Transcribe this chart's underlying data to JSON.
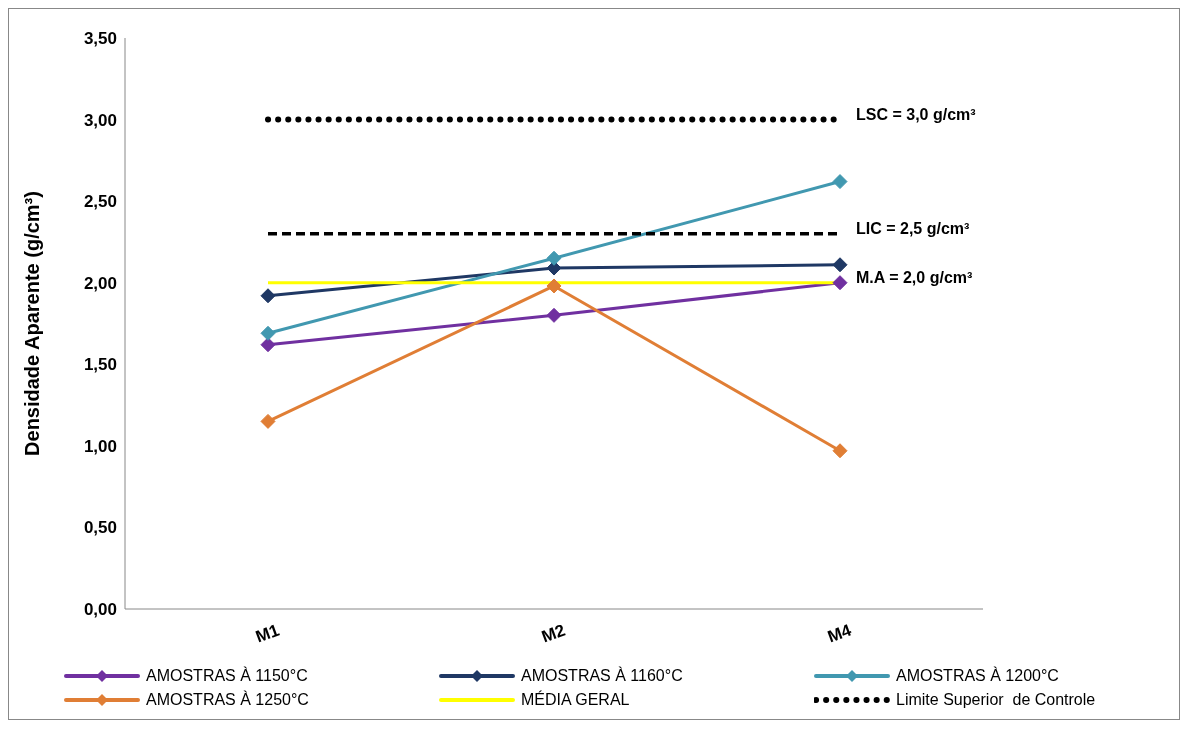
{
  "chart_data": {
    "type": "line",
    "ylabel": "Densidade Aparente (g/cm³)",
    "categories": [
      "M1",
      "M2",
      "M4"
    ],
    "ylim": [
      0,
      3.5
    ],
    "yticks": [
      {
        "value": 0,
        "label": "0,00"
      },
      {
        "value": 0.5,
        "label": "0,50"
      },
      {
        "value": 1,
        "label": "1,00"
      },
      {
        "value": 1.5,
        "label": "1,50"
      },
      {
        "value": 2,
        "label": "2,00"
      },
      {
        "value": 2.5,
        "label": "2,50"
      },
      {
        "value": 3,
        "label": "3,00"
      },
      {
        "value": 3.5,
        "label": "3,50"
      }
    ],
    "grid": false,
    "legend": "bottom",
    "marker": "diamond",
    "series": [
      {
        "name": "AMOSTRAS À 1150°C",
        "color": "#7030a0",
        "values": [
          1.62,
          1.8,
          2.0
        ]
      },
      {
        "name": "AMOSTRAS À 1160°C",
        "color": "#1f3864",
        "values": [
          1.92,
          2.09,
          2.11
        ]
      },
      {
        "name": "AMOSTRAS À 1200°C",
        "color": "#4198b0",
        "values": [
          1.69,
          2.15,
          2.62
        ]
      },
      {
        "name": "AMOSTRAS À 1250°C",
        "color": "#e07e35",
        "values": [
          1.15,
          1.98,
          0.97
        ]
      },
      {
        "name": "MÉDIA GERAL",
        "color": "#ffff00",
        "values": [
          2.0,
          2.0,
          2.0
        ],
        "marker": "none"
      },
      {
        "name": "Limite Superior  de Controle",
        "color": "#000000",
        "values": [
          3.0,
          3.0,
          3.0
        ],
        "marker": "none",
        "line_style": "dotted"
      },
      {
        "color": "#000000",
        "values": [
          2.3,
          2.3,
          2.3
        ],
        "marker": "none",
        "line_style": "dashed"
      }
    ],
    "annotations": [
      {
        "text": "LSC = 3,0 g/cm³",
        "x": "M4",
        "y": 3.0
      },
      {
        "text": "LIC = 2,5 g/cm³",
        "x": "M4",
        "y": 2.3
      },
      {
        "text": "M.A  = 2,0 g/cm³",
        "x": "M4",
        "y": 2.0
      }
    ]
  }
}
